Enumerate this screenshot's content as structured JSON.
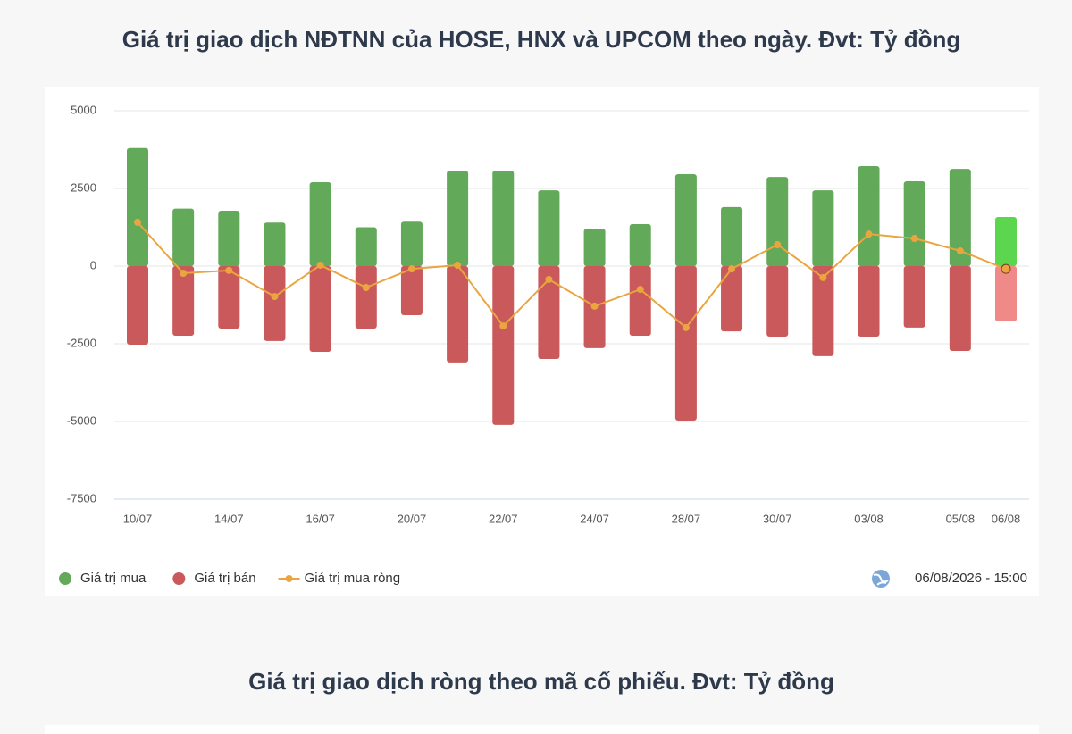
{
  "chart_data": {
    "type": "combo",
    "title": "Giá trị giao dịch NĐTNN của HOSE, HNX và UPCOM theo ngày. Đvt: Tỷ đồng",
    "categories": [
      "10/07",
      null,
      "14/07",
      null,
      "16/07",
      null,
      "20/07",
      null,
      "22/07",
      null,
      "24/07",
      null,
      "28/07",
      null,
      "30/07",
      null,
      "03/08",
      null,
      "05/08",
      "06/08"
    ],
    "series": [
      {
        "name": "Giá trị mua",
        "type": "bar",
        "color": "#63a95a",
        "latest_color": "#5bd64e",
        "values": [
          3800,
          1850,
          1780,
          1400,
          2700,
          1250,
          1430,
          3070,
          3070,
          2440,
          1200,
          1350,
          2960,
          1900,
          2870,
          2440,
          3220,
          2730,
          3130,
          1580
        ]
      },
      {
        "name": "Giá trị bán",
        "type": "bar",
        "color": "#c9595a",
        "latest_color": "#f08a88",
        "values": [
          -2530,
          -2240,
          -2010,
          -2410,
          -2760,
          -2010,
          -1580,
          -3100,
          -5110,
          -2990,
          -2640,
          -2240,
          -4970,
          -2100,
          -2270,
          -2900,
          -2270,
          -1980,
          -2730,
          -1780
        ]
      },
      {
        "name": "Giá trị mua ròng",
        "type": "line",
        "color": "#eaa540",
        "values": [
          1410,
          -230,
          -140,
          -980,
          30,
          -690,
          -90,
          30,
          -1930,
          -430,
          -1290,
          -750,
          -1980,
          -90,
          690,
          -370,
          1030,
          890,
          490,
          -90
        ]
      }
    ],
    "ylim": [
      -7500,
      5000
    ],
    "yticks": [
      -7500,
      -5000,
      -2500,
      0,
      2500,
      5000
    ],
    "grid": true,
    "timestamp": "06/08/2026 - 15:00"
  },
  "section_title": "Giá trị giao dịch ròng theo mã cổ phiếu. Đvt: Tỷ đồng"
}
